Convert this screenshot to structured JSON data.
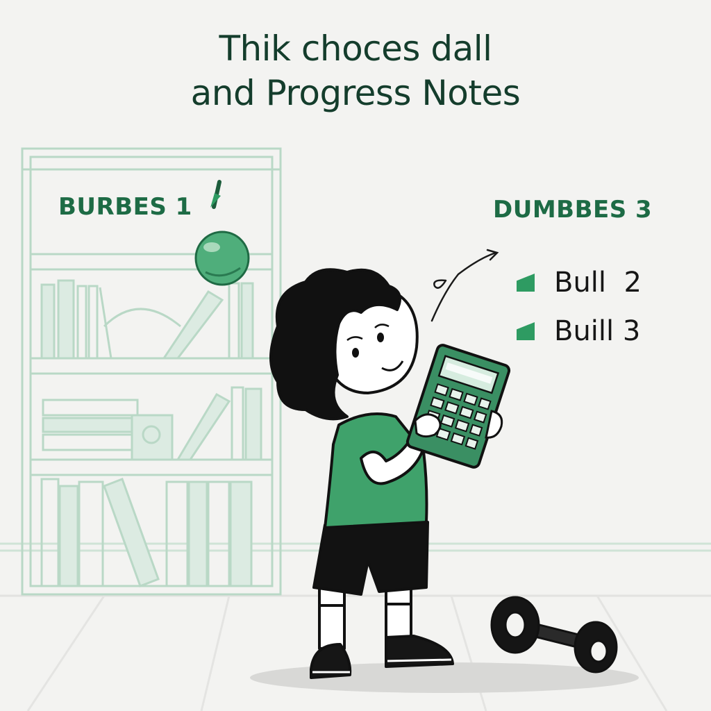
{
  "title": {
    "line1": "Thik choces dall",
    "line2": "and Progress Notes"
  },
  "left_heading": "BURBES 1",
  "right_heading": "DUMBBES 3",
  "bullets": [
    {
      "label": "Bull  2"
    },
    {
      "label": "Buill 3"
    }
  ],
  "colors": {
    "accent": "#2e9b62",
    "heading": "#1d6b45",
    "title": "#143d2c",
    "shelf_line": "#b9d8c6",
    "background": "#f3f3f1"
  },
  "icons": [
    "pencil-icon",
    "ball-icon",
    "arrow-icon",
    "calculator-icon",
    "dumbbell-icon"
  ]
}
